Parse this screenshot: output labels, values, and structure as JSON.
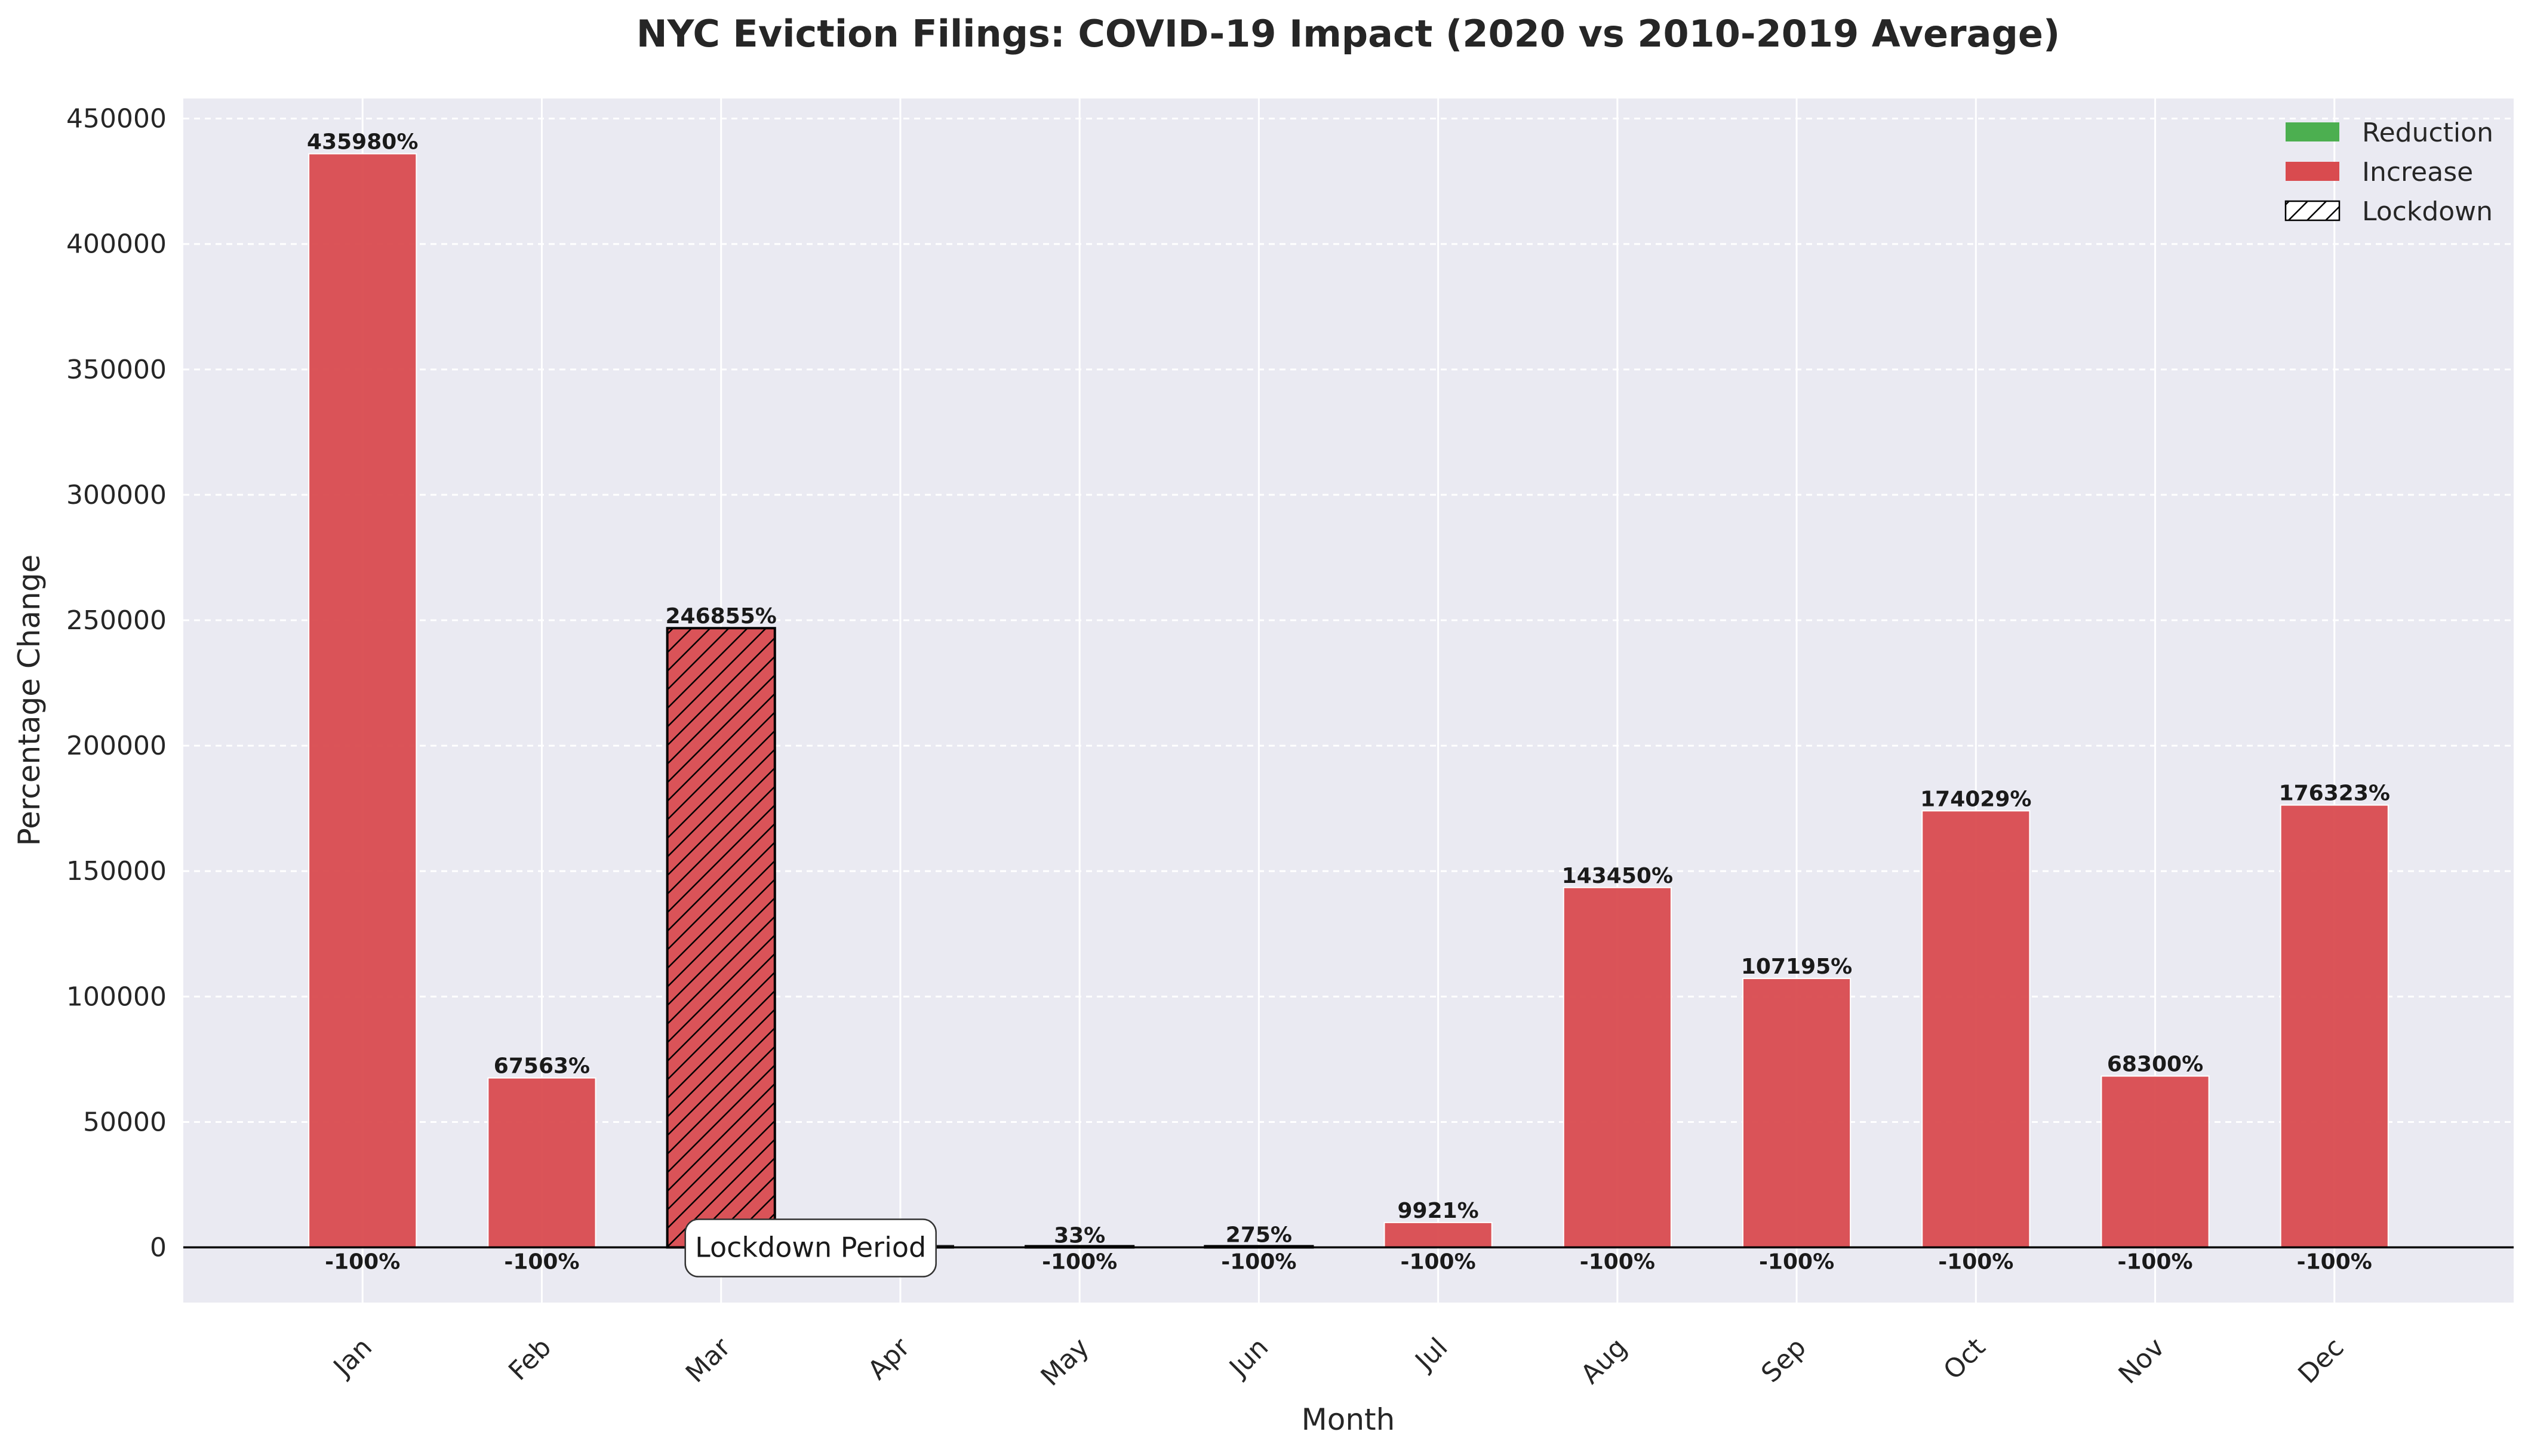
{
  "chart_data": {
    "type": "bar",
    "title": "NYC Eviction Filings: COVID-19 Impact (2020 vs 2010-2019 Average)",
    "xlabel": "Month",
    "ylabel": "Percentage Change",
    "categories": [
      "Jan",
      "Feb",
      "Mar",
      "Apr",
      "May",
      "Jun",
      "Jul",
      "Aug",
      "Sep",
      "Oct",
      "Nov",
      "Dec"
    ],
    "values": [
      435980,
      67563,
      246855,
      0,
      33,
      275,
      9921,
      143450,
      107195,
      174029,
      68300,
      176323
    ],
    "value_labels": [
      "435980%",
      "67563%",
      "246855%",
      "",
      "33%",
      "275%",
      "9921%",
      "143450%",
      "107195%",
      "174029%",
      "68300%",
      "176323%"
    ],
    "baseline_labels": [
      "-100%",
      "-100%",
      "-100%",
      "",
      "-100%",
      "-100%",
      "-100%",
      "-100%",
      "-100%",
      "-100%",
      "-100%",
      "-100%"
    ],
    "lockdown": [
      false,
      false,
      true,
      true,
      true,
      true,
      false,
      false,
      false,
      false,
      false,
      false
    ],
    "ylim": [
      -22000,
      458000
    ],
    "yticks": [
      0,
      50000,
      100000,
      150000,
      200000,
      250000,
      300000,
      350000,
      400000,
      450000
    ],
    "grid": true,
    "legend": {
      "position": "top-right",
      "entries": [
        {
          "label": "Reduction",
          "color": "#4caf50",
          "hatch": false
        },
        {
          "label": "Increase",
          "color": "#d94b4f",
          "hatch": false
        },
        {
          "label": "Lockdown",
          "color": "#ffffff",
          "hatch": true
        }
      ]
    },
    "annotation": {
      "text": "Lockdown Period",
      "month": "Mar"
    },
    "colors": {
      "increase": "#d94b4f",
      "reduction": "#4caf50",
      "plot_background": "#eaeaf2",
      "grid": "#ffffff",
      "zero_line": "#000000"
    }
  }
}
